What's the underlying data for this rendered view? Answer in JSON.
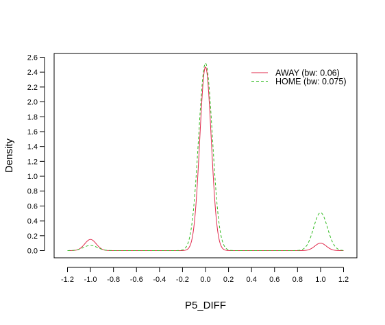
{
  "chart_data": {
    "type": "line",
    "title": "",
    "xlabel": "P5_DIFF",
    "ylabel": "Density",
    "xlim": [
      -1.2,
      1.2
    ],
    "ylim": [
      0.0,
      2.6
    ],
    "x_ticks": [
      "-1.2",
      "-1.0",
      "-0.8",
      "-0.6",
      "-0.4",
      "-0.2",
      "0.0",
      "0.2",
      "0.4",
      "0.6",
      "0.8",
      "1.0",
      "1.2"
    ],
    "y_ticks": [
      "0.0",
      "0.2",
      "0.4",
      "0.6",
      "0.8",
      "1.0",
      "1.2",
      "1.4",
      "1.6",
      "1.8",
      "2.0",
      "2.2",
      "2.4",
      "2.6"
    ],
    "grid": false,
    "legend_position": "top-right",
    "series": [
      {
        "name": "AWAY (bw: 0.06)",
        "color": "#E0294B",
        "line_style": "solid",
        "peaks": [
          {
            "x": -1.0,
            "y": 0.15
          },
          {
            "x": 0.0,
            "y": 2.47
          },
          {
            "x": 1.0,
            "y": 0.1
          }
        ]
      },
      {
        "name": "HOME (bw: 0.075)",
        "color": "#33BB22",
        "line_style": "dashed",
        "peaks": [
          {
            "x": -1.0,
            "y": 0.07
          },
          {
            "x": 0.0,
            "y": 2.52
          },
          {
            "x": 1.0,
            "y": 0.51
          }
        ]
      }
    ]
  }
}
